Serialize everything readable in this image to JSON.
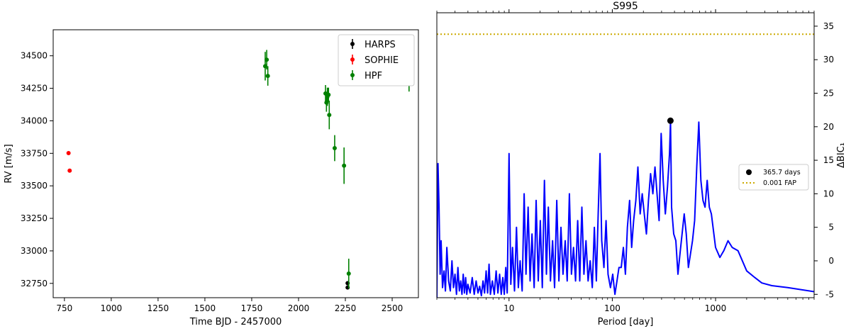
{
  "chart_data": [
    {
      "type": "scatter",
      "title": "",
      "xlabel": "Time BJD - 2457000",
      "ylabel": "RV [m/s]",
      "xlim": [
        690,
        2640
      ],
      "ylim": [
        32640,
        34700
      ],
      "xticks": [
        750,
        1000,
        1250,
        1500,
        1750,
        2000,
        2250,
        2500
      ],
      "yticks": [
        32750,
        33000,
        33250,
        33500,
        33750,
        34000,
        34250,
        34500
      ],
      "legend_position": "top-right",
      "series": [
        {
          "name": "HARPS",
          "color": "#000000",
          "points": [
            {
              "x": 2262,
              "y": 32752,
              "err": 10
            },
            {
              "x": 2262,
              "y": 32718,
              "err": 10
            }
          ]
        },
        {
          "name": "SOPHIE",
          "color": "#ff0000",
          "points": [
            {
              "x": 772,
              "y": 33752,
              "err": 8
            },
            {
              "x": 778,
              "y": 33617,
              "err": 8
            }
          ]
        },
        {
          "name": "HPF",
          "color": "#008000",
          "points": [
            {
              "x": 1822,
              "y": 34420,
              "err": 110
            },
            {
              "x": 1830,
              "y": 34470,
              "err": 75
            },
            {
              "x": 1836,
              "y": 34345,
              "err": 75
            },
            {
              "x": 2144,
              "y": 34210,
              "err": 65
            },
            {
              "x": 2149,
              "y": 34140,
              "err": 70
            },
            {
              "x": 2154,
              "y": 34185,
              "err": 70
            },
            {
              "x": 2160,
              "y": 34200,
              "err": 55
            },
            {
              "x": 2164,
              "y": 34045,
              "err": 110
            },
            {
              "x": 2193,
              "y": 33790,
              "err": 100
            },
            {
              "x": 2243,
              "y": 33655,
              "err": 140
            },
            {
              "x": 2268,
              "y": 32825,
              "err": 115
            },
            {
              "x": 2590,
              "y": 34285,
              "err": 60
            }
          ]
        }
      ]
    },
    {
      "type": "line",
      "title": "S995",
      "xlabel": "Period [day]",
      "ylabel": "ΔBIC₁",
      "xscale": "log",
      "xlim": [
        2,
        9000
      ],
      "ylim": [
        -5.5,
        37
      ],
      "xticks": [
        10,
        100,
        1000
      ],
      "xtick_labels": [
        "10",
        "100",
        "1000"
      ],
      "yticks": [
        -5,
        0,
        5,
        10,
        15,
        20,
        25,
        30,
        35
      ],
      "yaxis_position": "right",
      "fap_line": {
        "label": "0.001 FAP",
        "value": 33.8,
        "color": "#ccaa00"
      },
      "peak": {
        "label": "365.7 days",
        "x": 365.7,
        "y": 20.9,
        "color": "#000000"
      },
      "series": [
        {
          "name": "",
          "color": "#0000ff",
          "points": [
            [
              2.0,
              -5.5
            ],
            [
              2.05,
              14.5
            ],
            [
              2.1,
              8
            ],
            [
              2.15,
              -2
            ],
            [
              2.2,
              3
            ],
            [
              2.27,
              -4
            ],
            [
              2.35,
              -1.5
            ],
            [
              2.42,
              -4.5
            ],
            [
              2.5,
              2
            ],
            [
              2.6,
              -3
            ],
            [
              2.7,
              -4.5
            ],
            [
              2.8,
              0
            ],
            [
              2.9,
              -4
            ],
            [
              3.0,
              -2
            ],
            [
              3.1,
              -5
            ],
            [
              3.2,
              -1
            ],
            [
              3.3,
              -4.5
            ],
            [
              3.4,
              -3
            ],
            [
              3.5,
              -5
            ],
            [
              3.6,
              -2
            ],
            [
              3.7,
              -4.8
            ],
            [
              3.8,
              -2.5
            ],
            [
              3.9,
              -5
            ],
            [
              4.0,
              -3.5
            ],
            [
              4.2,
              -4.8
            ],
            [
              4.4,
              -2.5
            ],
            [
              4.6,
              -5
            ],
            [
              4.8,
              -3
            ],
            [
              5.0,
              -4.8
            ],
            [
              5.2,
              -3.8
            ],
            [
              5.4,
              -5.2
            ],
            [
              5.6,
              -3
            ],
            [
              5.8,
              -4.8
            ],
            [
              6.0,
              -1.5
            ],
            [
              6.2,
              -4.8
            ],
            [
              6.4,
              -0.5
            ],
            [
              6.6,
              -5
            ],
            [
              6.9,
              -3
            ],
            [
              7.2,
              -5
            ],
            [
              7.5,
              -1.5
            ],
            [
              7.8,
              -4.8
            ],
            [
              8.1,
              -2
            ],
            [
              8.4,
              -5
            ],
            [
              8.7,
              -2.5
            ],
            [
              9.0,
              -5
            ],
            [
              9.3,
              -1
            ],
            [
              9.6,
              -4.8
            ],
            [
              10.0,
              16
            ],
            [
              10.4,
              -3.5
            ],
            [
              10.8,
              2
            ],
            [
              11.3,
              -4.5
            ],
            [
              11.8,
              5
            ],
            [
              12.3,
              -4
            ],
            [
              12.8,
              0
            ],
            [
              13.4,
              -4.5
            ],
            [
              14,
              10
            ],
            [
              14.6,
              -2
            ],
            [
              15.3,
              8
            ],
            [
              16,
              -3
            ],
            [
              16.7,
              4
            ],
            [
              17.5,
              -4
            ],
            [
              18.3,
              9
            ],
            [
              19.2,
              -3
            ],
            [
              20.1,
              6
            ],
            [
              21,
              -4
            ],
            [
              22,
              12
            ],
            [
              23,
              -2
            ],
            [
              24,
              8
            ],
            [
              25.2,
              -3
            ],
            [
              26.4,
              3
            ],
            [
              27.6,
              -4
            ],
            [
              29,
              9
            ],
            [
              30.4,
              -3
            ],
            [
              31.8,
              5
            ],
            [
              33.3,
              -2
            ],
            [
              35,
              3
            ],
            [
              36.6,
              -3
            ],
            [
              38.4,
              10
            ],
            [
              40.2,
              -2
            ],
            [
              42.1,
              2
            ],
            [
              44.1,
              -3
            ],
            [
              46.2,
              6
            ],
            [
              48.4,
              -3
            ],
            [
              50.7,
              8
            ],
            [
              53.1,
              -2
            ],
            [
              55.6,
              3
            ],
            [
              58.3,
              -3
            ],
            [
              61,
              0
            ],
            [
              64,
              -4
            ],
            [
              67,
              5
            ],
            [
              70,
              -3
            ],
            [
              73,
              7
            ],
            [
              76,
              16
            ],
            [
              79,
              3
            ],
            [
              83,
              -1
            ],
            [
              87,
              6
            ],
            [
              91,
              -2
            ],
            [
              96,
              -4
            ],
            [
              101,
              -2
            ],
            [
              106,
              -5
            ],
            [
              111,
              -3
            ],
            [
              116,
              -1
            ],
            [
              122,
              -1
            ],
            [
              128,
              2
            ],
            [
              134,
              -2
            ],
            [
              140,
              5
            ],
            [
              147,
              9
            ],
            [
              154,
              2
            ],
            [
              161,
              6
            ],
            [
              169,
              9
            ],
            [
              177,
              14
            ],
            [
              186,
              7
            ],
            [
              195,
              10
            ],
            [
              204,
              7
            ],
            [
              214,
              4
            ],
            [
              224,
              9
            ],
            [
              235,
              13
            ],
            [
              247,
              10
            ],
            [
              259,
              14
            ],
            [
              271,
              10
            ],
            [
              284,
              6
            ],
            [
              297,
              19
            ],
            [
              311,
              12
            ],
            [
              326,
              7
            ],
            [
              342,
              11
            ],
            [
              358,
              16
            ],
            [
              366,
              20.9
            ],
            [
              375,
              8
            ],
            [
              393,
              4
            ],
            [
              412,
              3
            ],
            [
              432,
              -2
            ],
            [
              452,
              1
            ],
            [
              474,
              4
            ],
            [
              497,
              7
            ],
            [
              520,
              4
            ],
            [
              545,
              -1
            ],
            [
              571,
              1
            ],
            [
              598,
              3
            ],
            [
              627,
              6
            ],
            [
              657,
              14
            ],
            [
              688,
              20.7
            ],
            [
              721,
              12
            ],
            [
              755,
              9
            ],
            [
              791,
              8
            ],
            [
              829,
              12
            ],
            [
              869,
              8
            ],
            [
              911,
              7
            ],
            [
              1000,
              2
            ],
            [
              1100,
              0.5
            ],
            [
              1200,
              1.5
            ],
            [
              1320,
              3
            ],
            [
              1450,
              2
            ],
            [
              1650,
              1.5
            ],
            [
              2000,
              -1.5
            ],
            [
              2400,
              -2.5
            ],
            [
              2800,
              -3.3
            ],
            [
              3500,
              -3.7
            ],
            [
              5000,
              -4.0
            ],
            [
              9000,
              -4.6
            ]
          ]
        }
      ]
    }
  ]
}
